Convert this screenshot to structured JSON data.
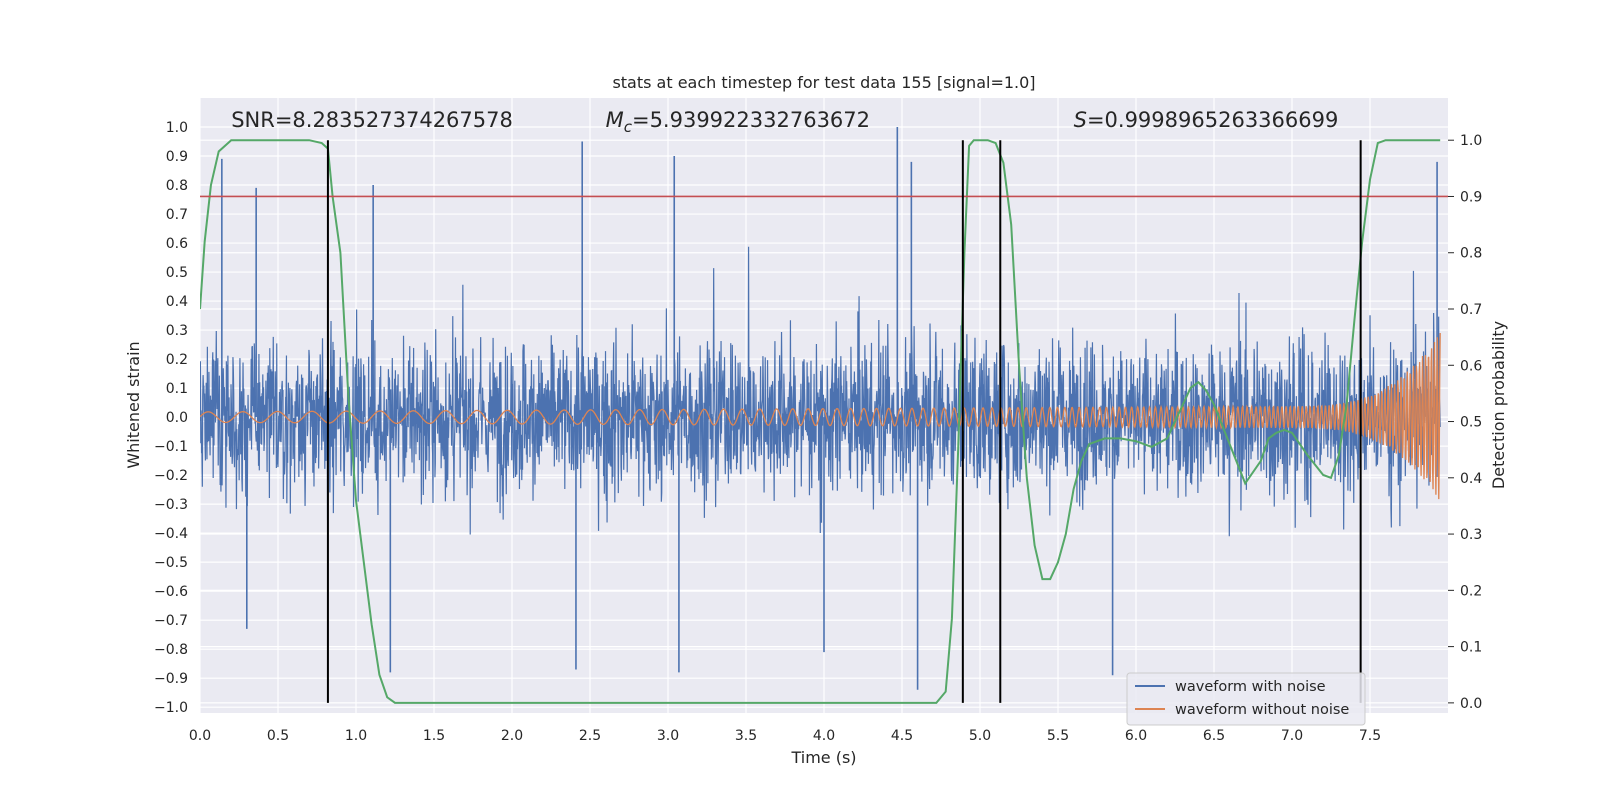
{
  "chart_data": {
    "type": "line",
    "title": "stats at each timestep for test data 155 [signal=1.0]",
    "xlabel": "Time (s)",
    "ylabel": "Whitened strain",
    "y2label": "Detection probability",
    "xlim": [
      0.0,
      8.0
    ],
    "ylim": [
      -1.02,
      1.1
    ],
    "y2lim": [
      -0.018,
      1.075
    ],
    "x_ticks": [
      "0.0",
      "0.5",
      "1.0",
      "1.5",
      "2.0",
      "2.5",
      "3.0",
      "3.5",
      "4.0",
      "4.5",
      "5.0",
      "5.5",
      "6.0",
      "6.5",
      "7.0",
      "7.5"
    ],
    "y_ticks": [
      "1.0",
      "0.9",
      "0.8",
      "0.7",
      "0.6",
      "0.5",
      "0.4",
      "0.3",
      "0.2",
      "0.1",
      "0.0",
      "−0.1",
      "−0.2",
      "−0.3",
      "−0.4",
      "−0.5",
      "−0.6",
      "−0.7",
      "−0.8",
      "−0.9",
      "−1.0"
    ],
    "y2_ticks": [
      "1.0",
      "0.9",
      "0.8",
      "0.7",
      "0.6",
      "0.5",
      "0.4",
      "0.3",
      "0.2",
      "0.1",
      "0.0"
    ],
    "threshold_line": {
      "value": 0.9,
      "axis": "right",
      "color": "#c44e52"
    },
    "vertical_lines": [
      0.82,
      4.89,
      5.13,
      7.44
    ],
    "annotations": [
      {
        "x": 0.2,
        "y": 1.0,
        "segments": [
          {
            "t": "SNR=8.283527374267578",
            "style": "normal"
          }
        ]
      },
      {
        "x": 2.6,
        "y": 1.0,
        "segments": [
          {
            "t": "M",
            "style": "italic"
          },
          {
            "t": "c",
            "style": "sub"
          },
          {
            "t": "=5.939922332763672",
            "style": "normal"
          }
        ]
      },
      {
        "x": 5.6,
        "y": 1.0,
        "segments": [
          {
            "t": "S",
            "style": "italic"
          },
          {
            "t": "=0.9998965263366699",
            "style": "normal"
          }
        ]
      }
    ],
    "series": [
      {
        "name": "waveform with noise",
        "color": "#4c72b0",
        "axis": "left",
        "envelope": {
          "x_start": 0.0,
          "x_end": 7.95,
          "typical_low": -0.4,
          "typical_high": 0.4,
          "dense_low": -0.22,
          "dense_high": 0.22
        },
        "spikes": [
          {
            "x": 0.14,
            "y": 0.89
          },
          {
            "x": 0.36,
            "y": 0.79
          },
          {
            "x": 1.11,
            "y": 0.8
          },
          {
            "x": 2.45,
            "y": 0.95
          },
          {
            "x": 3.04,
            "y": 0.9
          },
          {
            "x": 4.47,
            "y": 1.0
          },
          {
            "x": 4.56,
            "y": 0.88
          },
          {
            "x": 7.93,
            "y": 0.88
          },
          {
            "x": 1.22,
            "y": -0.88
          },
          {
            "x": 2.41,
            "y": -0.87
          },
          {
            "x": 3.07,
            "y": -0.88
          },
          {
            "x": 4.6,
            "y": -0.94
          },
          {
            "x": 5.85,
            "y": -0.89
          },
          {
            "x": 4.0,
            "y": -0.81
          },
          {
            "x": 0.3,
            "y": -0.73
          }
        ]
      },
      {
        "name": "waveform without noise",
        "color": "#dd8452",
        "axis": "left",
        "chirp": {
          "x_start": 0.0,
          "x_end": 7.95,
          "amp_start": 0.018,
          "amp_mid": 0.04,
          "amp_peak": 0.29,
          "amp_trough": -0.2,
          "f_start": 15,
          "f_end": 180
        }
      },
      {
        "name": "detection probability",
        "color": "#55a868",
        "axis": "right",
        "x": [
          0.0,
          0.03,
          0.07,
          0.12,
          0.2,
          0.3,
          0.5,
          0.7,
          0.78,
          0.82,
          0.85,
          0.9,
          0.95,
          1.0,
          1.05,
          1.1,
          1.15,
          1.2,
          1.25,
          1.5,
          2.0,
          3.0,
          4.0,
          4.5,
          4.72,
          4.78,
          4.82,
          4.86,
          4.9,
          4.93,
          4.96,
          5.0,
          5.05,
          5.1,
          5.15,
          5.2,
          5.25,
          5.3,
          5.35,
          5.4,
          5.45,
          5.5,
          5.55,
          5.6,
          5.65,
          5.7,
          5.8,
          5.9,
          6.0,
          6.1,
          6.2,
          6.3,
          6.35,
          6.4,
          6.45,
          6.5,
          6.6,
          6.7,
          6.8,
          6.85,
          6.9,
          6.95,
          7.0,
          7.1,
          7.2,
          7.25,
          7.3,
          7.35,
          7.4,
          7.45,
          7.5,
          7.55,
          7.6,
          7.7,
          7.8,
          7.95
        ],
        "y": [
          0.7,
          0.82,
          0.92,
          0.98,
          1.0,
          1.0,
          1.0,
          1.0,
          0.995,
          0.985,
          0.9,
          0.8,
          0.55,
          0.36,
          0.25,
          0.14,
          0.05,
          0.01,
          0.0,
          0.0,
          0.0,
          0.0,
          0.0,
          0.0,
          0.0,
          0.02,
          0.15,
          0.45,
          0.8,
          0.99,
          1.0,
          1.0,
          1.0,
          0.995,
          0.96,
          0.85,
          0.6,
          0.4,
          0.28,
          0.22,
          0.22,
          0.25,
          0.3,
          0.38,
          0.43,
          0.46,
          0.47,
          0.47,
          0.465,
          0.455,
          0.47,
          0.53,
          0.56,
          0.57,
          0.555,
          0.53,
          0.46,
          0.39,
          0.43,
          0.47,
          0.48,
          0.485,
          0.48,
          0.44,
          0.405,
          0.4,
          0.44,
          0.53,
          0.68,
          0.82,
          0.93,
          0.995,
          1.0,
          1.0,
          1.0,
          1.0
        ]
      }
    ],
    "legend": {
      "position": "lower-right",
      "entries": [
        {
          "label": "waveform with noise",
          "color": "#4c72b0"
        },
        {
          "label": "waveform without noise",
          "color": "#dd8452"
        }
      ]
    }
  }
}
